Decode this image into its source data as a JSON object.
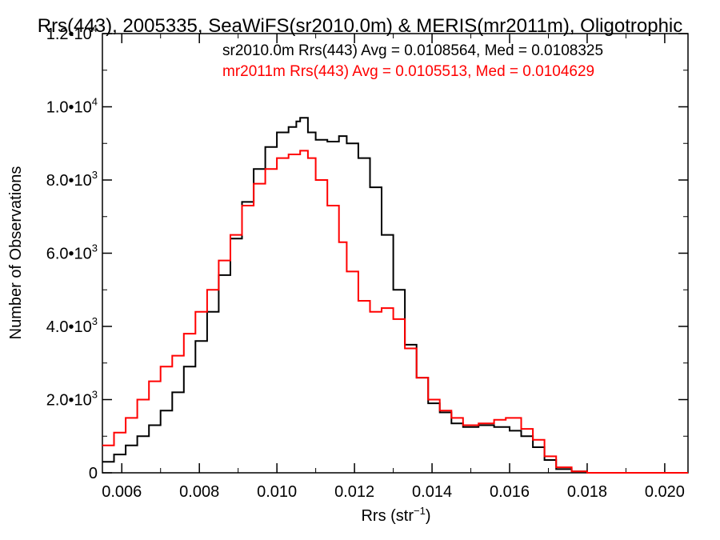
{
  "chart_data": {
    "type": "line",
    "title": "Rrs(443), 2005335, SeaWiFS(sr2010.0m) & MERIS(mr2011m), Oligotrophic",
    "xlabel": "Rrs (str",
    "xlabel_sup": "−1",
    "xlabel_end": ")",
    "ylabel": "Number of Observations",
    "xlim": [
      0.0055,
      0.0206
    ],
    "ylim": [
      0,
      12000
    ],
    "x_ticks": [
      {
        "value": 0.006,
        "label": "0.006"
      },
      {
        "value": 0.008,
        "label": "0.008"
      },
      {
        "value": 0.01,
        "label": "0.010"
      },
      {
        "value": 0.012,
        "label": "0.012"
      },
      {
        "value": 0.014,
        "label": "0.014"
      },
      {
        "value": 0.016,
        "label": "0.016"
      },
      {
        "value": 0.018,
        "label": "0.018"
      },
      {
        "value": 0.02,
        "label": "0.020"
      }
    ],
    "y_ticks": [
      {
        "value": 0,
        "mant": "0",
        "exp": ""
      },
      {
        "value": 2000,
        "mant": "2.0•10",
        "exp": "3"
      },
      {
        "value": 4000,
        "mant": "4.0•10",
        "exp": "3"
      },
      {
        "value": 6000,
        "mant": "6.0•10",
        "exp": "3"
      },
      {
        "value": 8000,
        "mant": "8.0•10",
        "exp": "3"
      },
      {
        "value": 10000,
        "mant": "1.0•10",
        "exp": "4"
      },
      {
        "value": 12000,
        "mant": "1.2•10",
        "exp": "4"
      }
    ],
    "grid": false,
    "legend_position": "top-right",
    "series": [
      {
        "name": "sr2010.0m Rrs(443) Avg = 0.0108564, Med = 0.0108325",
        "color": "#000000",
        "x": [
          0.0055,
          0.0058,
          0.0061,
          0.0064,
          0.0067,
          0.007,
          0.0073,
          0.0076,
          0.0079,
          0.0082,
          0.0085,
          0.0088,
          0.0091,
          0.0094,
          0.0097,
          0.01,
          0.0103,
          0.0105,
          0.0106,
          0.0108,
          0.011,
          0.0113,
          0.0116,
          0.0118,
          0.0121,
          0.0124,
          0.0127,
          0.013,
          0.0133,
          0.0136,
          0.0139,
          0.0142,
          0.0145,
          0.0148,
          0.0152,
          0.0156,
          0.016,
          0.0163,
          0.0166,
          0.0169,
          0.0172,
          0.0176,
          0.018,
          0.019,
          0.0206
        ],
        "y": [
          300,
          500,
          750,
          1000,
          1300,
          1700,
          2200,
          2900,
          3600,
          4400,
          5400,
          6400,
          7400,
          8300,
          8900,
          9300,
          9450,
          9600,
          9700,
          9300,
          9100,
          9050,
          9200,
          9000,
          8600,
          7800,
          6500,
          5000,
          3500,
          2600,
          1900,
          1650,
          1350,
          1250,
          1300,
          1250,
          1150,
          1000,
          700,
          350,
          100,
          40,
          0,
          0,
          0
        ]
      },
      {
        "name": "mr2011m Rrs(443) Avg = 0.0105513, Med = 0.0104629",
        "color": "#ff0000",
        "x": [
          0.0055,
          0.0058,
          0.0061,
          0.0064,
          0.0067,
          0.007,
          0.0073,
          0.0076,
          0.0079,
          0.0082,
          0.0085,
          0.0088,
          0.0091,
          0.0094,
          0.0097,
          0.01,
          0.0103,
          0.0106,
          0.0108,
          0.011,
          0.0113,
          0.0116,
          0.0118,
          0.0121,
          0.0124,
          0.0127,
          0.013,
          0.0133,
          0.0136,
          0.0139,
          0.0142,
          0.0145,
          0.0148,
          0.0152,
          0.0156,
          0.0159,
          0.016,
          0.0163,
          0.0166,
          0.0169,
          0.0172,
          0.0176,
          0.018,
          0.019,
          0.0206
        ],
        "y": [
          750,
          1100,
          1500,
          2000,
          2500,
          2900,
          3200,
          3800,
          4400,
          5000,
          5800,
          6500,
          7300,
          7900,
          8300,
          8600,
          8700,
          8800,
          8600,
          8000,
          7300,
          6300,
          5500,
          4700,
          4400,
          4500,
          4200,
          3400,
          2600,
          2000,
          1700,
          1500,
          1300,
          1350,
          1450,
          1500,
          1500,
          1200,
          900,
          450,
          150,
          40,
          0,
          0,
          0
        ]
      }
    ]
  }
}
